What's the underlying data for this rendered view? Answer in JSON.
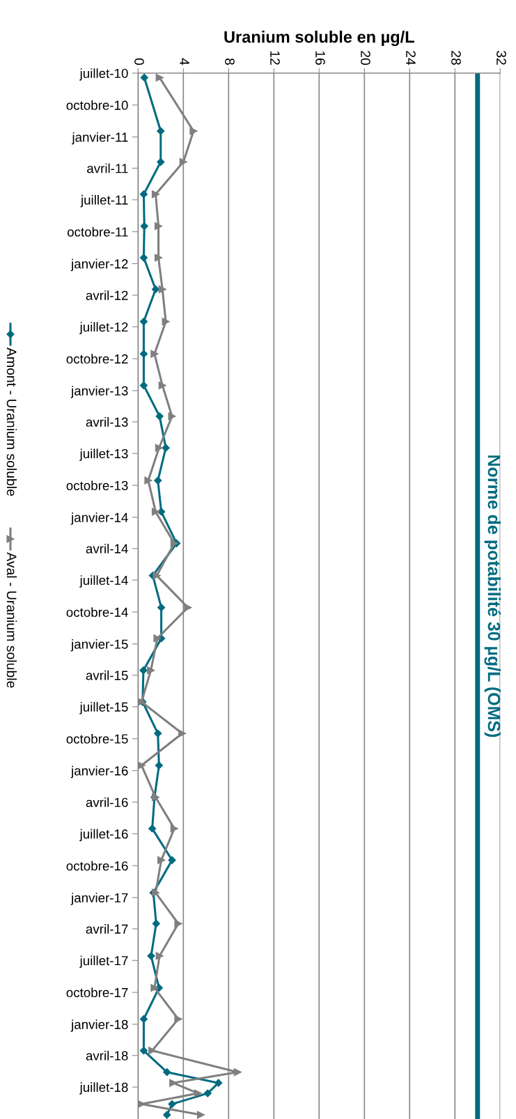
{
  "chart_data": {
    "type": "line",
    "orientation": "horizontal",
    "xlabel": "Uranium soluble en µg/L",
    "x": [
      "2010-07-14",
      "2010-12-15",
      "2011-03-14",
      "2011-06-15",
      "2011-09-15",
      "2011-12-15",
      "2012-03-15",
      "2012-06-16",
      "2012-09-17",
      "2012-12-17",
      "2013-03-16",
      "2013-06-15",
      "2013-09-17",
      "2013-12-16",
      "2014-03-17",
      "2014-06-18",
      "2014-09-18",
      "2014-12-16",
      "2015-03-18",
      "2015-06-17",
      "2015-09-16",
      "2015-12-17",
      "2016-03-18",
      "2016-06-16",
      "2016-09-15",
      "2016-12-18",
      "2017-03-17",
      "2017-06-18",
      "2017-09-18",
      "2017-12-17",
      "2018-03-18",
      "2018-05-19",
      "2018-06-19",
      "2018-07-19",
      "2018-08-19",
      "2018-09-19"
    ],
    "series": [
      {
        "name": "Amont - Uranium soluble",
        "color": "#006b80",
        "marker": "diamond",
        "values": [
          0.55,
          2.0,
          2.0,
          0.5,
          0.55,
          0.5,
          1.55,
          0.5,
          0.5,
          0.5,
          1.9,
          2.45,
          1.75,
          2.05,
          3.4,
          1.3,
          2.05,
          2.05,
          0.47,
          0.4,
          1.75,
          1.85,
          1.45,
          1.25,
          3.0,
          1.35,
          1.6,
          1.15,
          1.85,
          0.5,
          0.5,
          2.55,
          7.1,
          6.15,
          3.0,
          2.55
        ]
      },
      {
        "name": "Aval - Uranium soluble",
        "color": "#7f7f80",
        "marker": "triangle",
        "values": [
          1.9,
          4.9,
          4.0,
          1.55,
          1.8,
          1.8,
          2.15,
          2.45,
          1.45,
          2.15,
          3.0,
          1.85,
          0.9,
          1.55,
          3.2,
          1.65,
          4.4,
          1.7,
          1.13,
          0.3,
          3.9,
          0.3,
          1.55,
          3.2,
          2.05,
          1.55,
          3.55,
          1.9,
          1.45,
          3.55,
          1.25,
          8.8,
          3.1,
          5.3,
          0.3,
          5.55
        ]
      }
    ],
    "xlim": [
      0,
      32
    ],
    "xticks": [
      0,
      4,
      8,
      12,
      16,
      20,
      24,
      28,
      32
    ],
    "ylim": [
      "2018-10-01",
      "2010-07-01"
    ],
    "yticks": [
      {
        "value": "2010-07-01",
        "label": "juillet-10"
      },
      {
        "value": "2010-10-01",
        "label": "octobre-10"
      },
      {
        "value": "2011-01-01",
        "label": "janvier-11"
      },
      {
        "value": "2011-04-01",
        "label": "avril-11"
      },
      {
        "value": "2011-07-01",
        "label": "juillet-11"
      },
      {
        "value": "2011-10-01",
        "label": "octobre-11"
      },
      {
        "value": "2012-01-01",
        "label": "janvier-12"
      },
      {
        "value": "2012-04-01",
        "label": "avril-12"
      },
      {
        "value": "2012-07-01",
        "label": "juillet-12"
      },
      {
        "value": "2012-10-01",
        "label": "octobre-12"
      },
      {
        "value": "2013-01-01",
        "label": "janvier-13"
      },
      {
        "value": "2013-04-01",
        "label": "avril-13"
      },
      {
        "value": "2013-07-01",
        "label": "juillet-13"
      },
      {
        "value": "2013-10-01",
        "label": "octobre-13"
      },
      {
        "value": "2014-01-01",
        "label": "janvier-14"
      },
      {
        "value": "2014-04-01",
        "label": "avril-14"
      },
      {
        "value": "2014-07-01",
        "label": "juillet-14"
      },
      {
        "value": "2014-10-01",
        "label": "octobre-14"
      },
      {
        "value": "2015-01-01",
        "label": "janvier-15"
      },
      {
        "value": "2015-04-01",
        "label": "avril-15"
      },
      {
        "value": "2015-07-01",
        "label": "juillet-15"
      },
      {
        "value": "2015-10-01",
        "label": "octobre-15"
      },
      {
        "value": "2016-01-01",
        "label": "janvier-16"
      },
      {
        "value": "2016-04-01",
        "label": "avril-16"
      },
      {
        "value": "2016-07-01",
        "label": "juillet-16"
      },
      {
        "value": "2016-10-01",
        "label": "octobre-16"
      },
      {
        "value": "2017-01-01",
        "label": "janvier-17"
      },
      {
        "value": "2017-04-01",
        "label": "avril-17"
      },
      {
        "value": "2017-07-01",
        "label": "juillet-17"
      },
      {
        "value": "2017-10-01",
        "label": "octobre-17"
      },
      {
        "value": "2018-01-01",
        "label": "janvier-18"
      },
      {
        "value": "2018-04-01",
        "label": "avril-18"
      },
      {
        "value": "2018-07-01",
        "label": "juillet-18"
      }
    ],
    "ref_lines": [
      {
        "axis": "x",
        "value": 30,
        "label": "Norme de potabilité 30 µg/L (OMS)",
        "color": "#006b80"
      }
    ],
    "grid": "x",
    "legend": "left",
    "line_style": "solid"
  }
}
